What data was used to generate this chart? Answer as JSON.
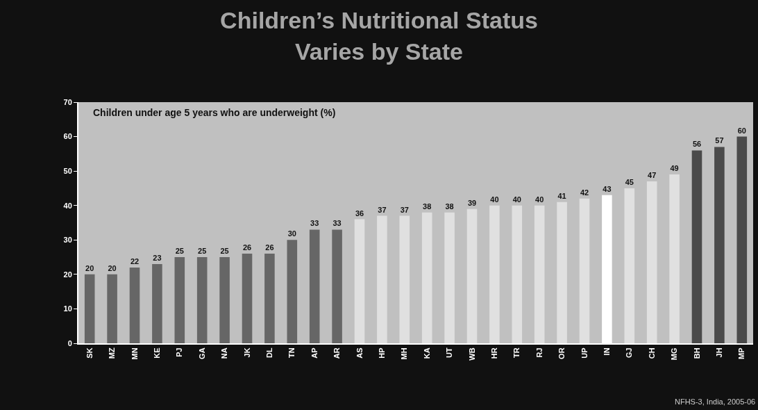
{
  "chart_data": {
    "type": "bar",
    "title": "Children’s Nutritional Status\nVaries by State",
    "subtitle": "Children under age 5 years who are underweight (%)",
    "categories": [
      "SK",
      "MZ",
      "MN",
      "KE",
      "PJ",
      "GA",
      "NA",
      "JK",
      "DL",
      "TN",
      "AP",
      "AR",
      "AS",
      "HP",
      "MH",
      "KA",
      "UT",
      "WB",
      "HR",
      "TR",
      "RJ",
      "OR",
      "UP",
      "IN",
      "GJ",
      "CH",
      "MG",
      "BH",
      "JH",
      "MP"
    ],
    "values": [
      20,
      20,
      22,
      23,
      25,
      25,
      25,
      26,
      26,
      30,
      33,
      33,
      36,
      37,
      37,
      38,
      38,
      39,
      40,
      40,
      40,
      41,
      42,
      43,
      45,
      47,
      49,
      56,
      57,
      60
    ],
    "colors": [
      "#666666",
      "#666666",
      "#666666",
      "#666666",
      "#666666",
      "#666666",
      "#666666",
      "#666666",
      "#666666",
      "#666666",
      "#666666",
      "#666666",
      "#e0e0e0",
      "#e0e0e0",
      "#e0e0e0",
      "#e0e0e0",
      "#e0e0e0",
      "#e0e0e0",
      "#e0e0e0",
      "#e0e0e0",
      "#e0e0e0",
      "#e0e0e0",
      "#e0e0e0",
      "#ffffff",
      "#e0e0e0",
      "#e0e0e0",
      "#e0e0e0",
      "#4a4a4a",
      "#4a4a4a",
      "#4a4a4a"
    ],
    "ylim": [
      0,
      70
    ],
    "yticks": [
      0,
      10,
      20,
      30,
      40,
      50,
      60,
      70
    ],
    "grid": false,
    "data_labels": true,
    "annotations": [
      "NFHS-3, India, 2005-06"
    ]
  }
}
